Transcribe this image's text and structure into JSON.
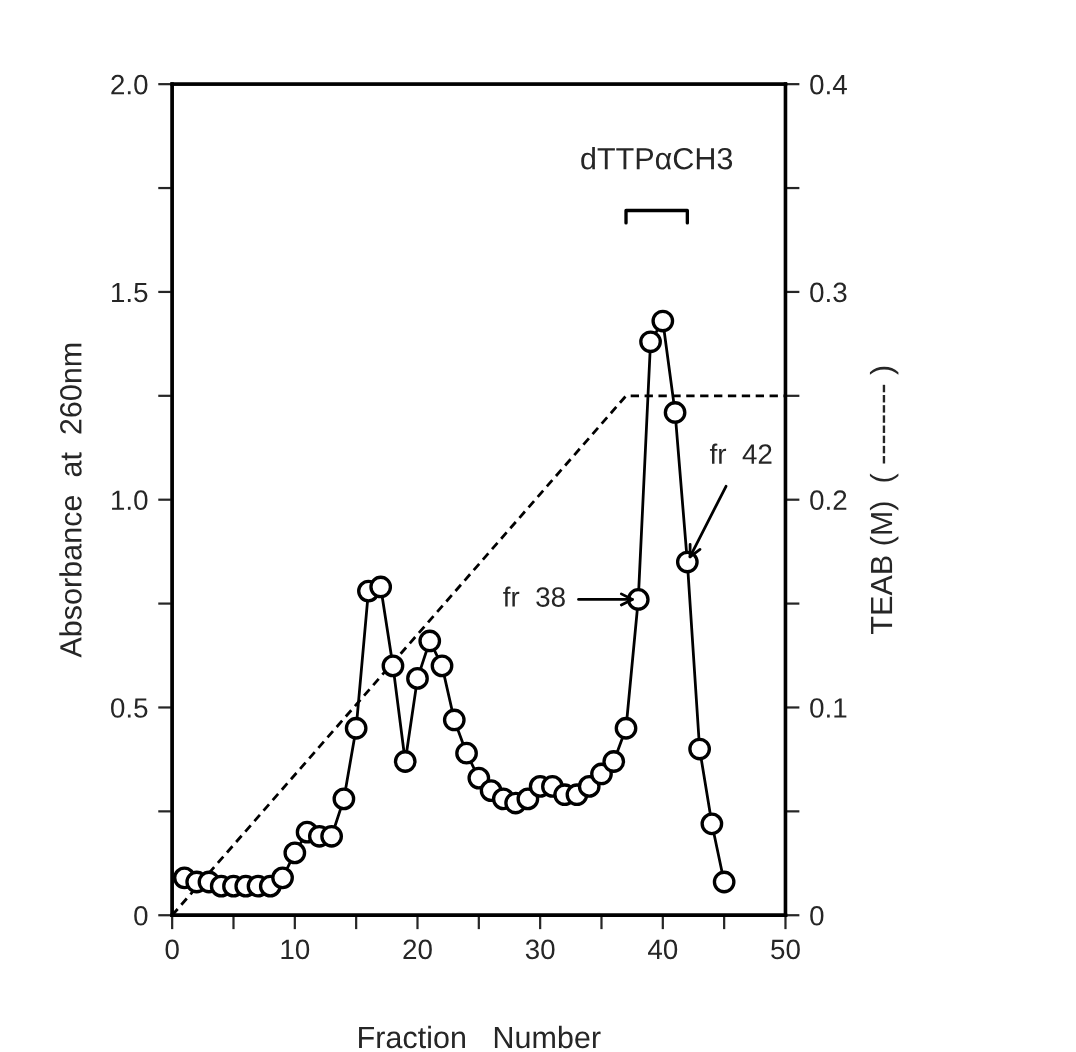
{
  "chart_data": {
    "type": "line",
    "xlabel": "Fraction   Number",
    "ylabel": "Absorbance  at  260nm",
    "y2label": "TEAB (M)  ( -------- )",
    "xlim": [
      0,
      50
    ],
    "xticks": [
      0,
      {
        "value": 5,
        "label": null
      },
      10,
      {
        "value": 15,
        "label": null
      },
      20,
      {
        "value": 25,
        "label": null
      },
      30,
      {
        "value": 35,
        "label": null
      },
      40,
      {
        "value": 45,
        "label": null
      },
      50
    ],
    "ylim": [
      0,
      2.0
    ],
    "yticks": [
      0,
      {
        "value": 0.25,
        "label": null
      },
      0.5,
      {
        "value": 0.75,
        "label": null
      },
      {
        "value": 1.0,
        "label": "1.0"
      },
      {
        "value": 1.25,
        "label": null
      },
      1.5,
      {
        "value": 1.75,
        "label": null
      },
      {
        "value": 2.0,
        "label": "2.0"
      }
    ],
    "y2lim": [
      0,
      0.4
    ],
    "y2ticks": [
      0,
      {
        "value": 0.05,
        "label": null
      },
      0.1,
      {
        "value": 0.15,
        "label": null
      },
      0.2,
      {
        "value": 0.25,
        "label": null
      },
      0.3,
      {
        "value": 0.35,
        "label": null
      },
      0.4
    ],
    "grid": false,
    "legend": false,
    "series": [
      {
        "color": "#000000",
        "marker": "circle",
        "line_style": "solid",
        "x": [
          1,
          2,
          3,
          4,
          5,
          6,
          7,
          8,
          9,
          10,
          11,
          12,
          13,
          14,
          15,
          16,
          17,
          18,
          19,
          20,
          21,
          22,
          23,
          24,
          25,
          26,
          27,
          28,
          29,
          30,
          31,
          32,
          33,
          34,
          35,
          36,
          37,
          38,
          39,
          40,
          41,
          42,
          43,
          44,
          45
        ],
        "values": [
          0.09,
          0.08,
          0.08,
          0.07,
          0.07,
          0.07,
          0.07,
          0.07,
          0.09,
          0.15,
          0.2,
          0.19,
          0.19,
          0.28,
          0.45,
          0.78,
          0.79,
          0.6,
          0.37,
          0.57,
          0.66,
          0.6,
          0.47,
          0.39,
          0.33,
          0.3,
          0.28,
          0.27,
          0.28,
          0.31,
          0.31,
          0.29,
          0.29,
          0.31,
          0.34,
          0.37,
          0.45,
          0.76,
          1.38,
          1.43,
          1.21,
          0.85,
          0.4,
          0.22,
          0.08
        ]
      },
      {
        "color": "#000000",
        "marker": "none",
        "line_style": "dashed",
        "axis": "y2",
        "x": [
          0,
          37,
          50
        ],
        "values": [
          0,
          0.25,
          0.25
        ]
      }
    ],
    "annotations": [
      "dTTPαCH3",
      {
        "text": "fr  38",
        "x": 38,
        "y": 0.76
      },
      {
        "text": "fr  42",
        "x": 42,
        "y": 0.85
      }
    ]
  }
}
